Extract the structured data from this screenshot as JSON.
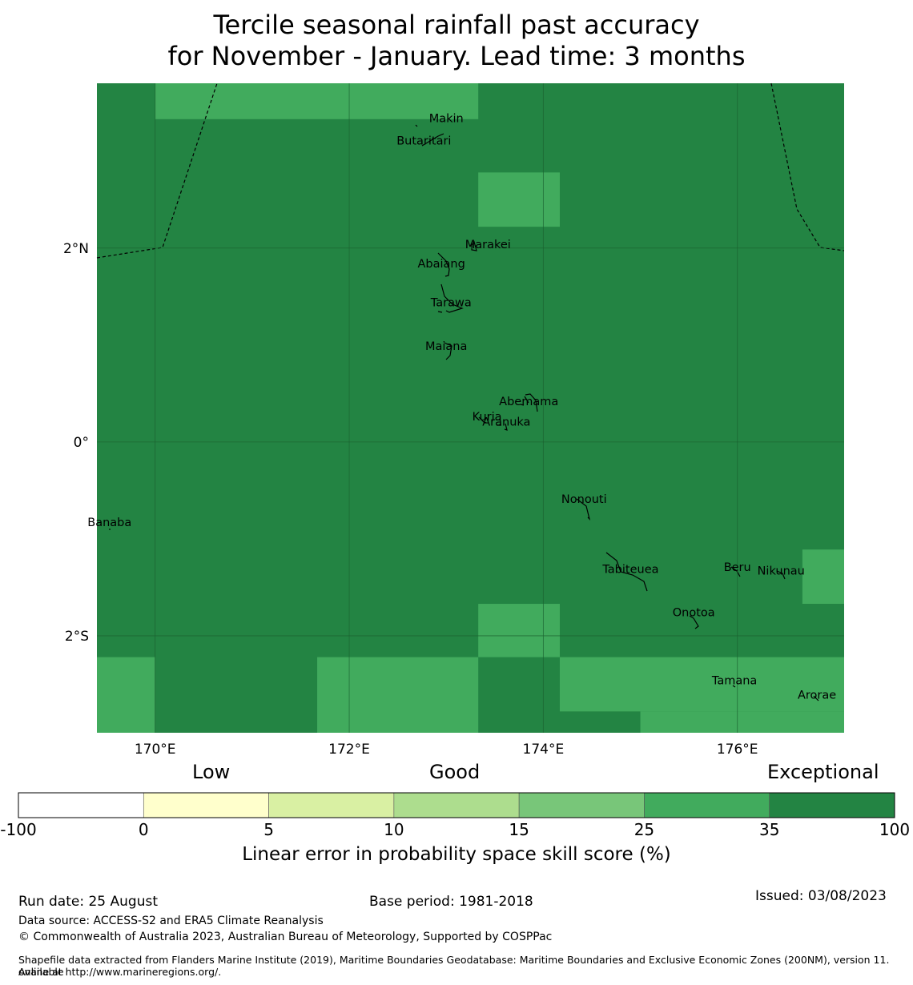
{
  "title": {
    "line1": "Tercile seasonal rainfall past accuracy",
    "line2": "for November - January. Lead time: 3 months"
  },
  "map": {
    "lon_range": [
      169.4,
      177.1
    ],
    "lat_range": [
      -3.0,
      3.7
    ],
    "x_ticks": [
      {
        "value": 170,
        "label": "170°E"
      },
      {
        "value": 172,
        "label": "172°E"
      },
      {
        "value": 174,
        "label": "174°E"
      },
      {
        "value": 176,
        "label": "176°E"
      }
    ],
    "y_ticks": [
      {
        "value": 2,
        "label": "2°N"
      },
      {
        "value": 0,
        "label": "0°"
      },
      {
        "value": -2,
        "label": "2°S"
      }
    ],
    "gridlines": true,
    "background_color": "#238443",
    "cells": [
      {
        "lon": [
          170.0,
          173.33
        ],
        "lat": [
          3.33,
          3.7
        ],
        "color": "#41ab5d"
      },
      {
        "lon": [
          173.33,
          174.17
        ],
        "lat": [
          2.22,
          2.78
        ],
        "color": "#41ab5d"
      },
      {
        "lon": [
          176.67,
          177.1
        ],
        "lat": [
          -1.67,
          -1.11
        ],
        "color": "#41ab5d"
      },
      {
        "lon": [
          173.33,
          174.17
        ],
        "lat": [
          -2.22,
          -1.67
        ],
        "color": "#41ab5d"
      },
      {
        "lon": [
          169.4,
          170.0
        ],
        "lat": [
          -3.0,
          -2.22
        ],
        "color": "#41ab5d"
      },
      {
        "lon": [
          171.67,
          173.33
        ],
        "lat": [
          -3.0,
          -2.22
        ],
        "color": "#41ab5d"
      },
      {
        "lon": [
          174.17,
          177.1
        ],
        "lat": [
          -2.78,
          -2.22
        ],
        "color": "#41ab5d"
      },
      {
        "lon": [
          175.0,
          177.1
        ],
        "lat": [
          -3.0,
          -2.78
        ],
        "color": "#41ab5d"
      }
    ],
    "islands": [
      {
        "name": "Makin",
        "lon": 173.0,
        "lat": 3.3
      },
      {
        "name": "Butaritari",
        "lon": 172.77,
        "lat": 3.07
      },
      {
        "name": "Marakei",
        "lon": 173.43,
        "lat": 2.0
      },
      {
        "name": "Abaiang",
        "lon": 172.95,
        "lat": 1.8
      },
      {
        "name": "Tarawa",
        "lon": 173.05,
        "lat": 1.4
      },
      {
        "name": "Maiana",
        "lon": 173.0,
        "lat": 0.95
      },
      {
        "name": "Abemama",
        "lon": 173.85,
        "lat": 0.38
      },
      {
        "name": "Kuria",
        "lon": 173.42,
        "lat": 0.22
      },
      {
        "name": "Aranuka",
        "lon": 173.62,
        "lat": 0.17
      },
      {
        "name": "Nonouti",
        "lon": 174.42,
        "lat": -0.63
      },
      {
        "name": "Banaba",
        "lon": 169.53,
        "lat": -0.87
      },
      {
        "name": "Tabiteuea",
        "lon": 174.9,
        "lat": -1.35
      },
      {
        "name": "Beru",
        "lon": 176.0,
        "lat": -1.33
      },
      {
        "name": "Nikunau",
        "lon": 176.45,
        "lat": -1.37
      },
      {
        "name": "Onotoa",
        "lon": 175.55,
        "lat": -1.8
      },
      {
        "name": "Tamana",
        "lon": 175.97,
        "lat": -2.5
      },
      {
        "name": "Arorae",
        "lon": 176.82,
        "lat": -2.65
      }
    ]
  },
  "colorbar": {
    "categories": [
      "Low",
      "Good",
      "Exceptional"
    ],
    "bins": [
      {
        "from": -100,
        "to": 0,
        "color": "#ffffff"
      },
      {
        "from": 0,
        "to": 5,
        "color": "#ffffcc"
      },
      {
        "from": 5,
        "to": 10,
        "color": "#d9f0a3"
      },
      {
        "from": 10,
        "to": 15,
        "color": "#addd8e"
      },
      {
        "from": 15,
        "to": 25,
        "color": "#78c679"
      },
      {
        "from": 25,
        "to": 35,
        "color": "#41ab5d"
      },
      {
        "from": 35,
        "to": 100,
        "color": "#238443"
      }
    ],
    "tick_labels": [
      "-100",
      "0",
      "5",
      "10",
      "15",
      "25",
      "35",
      "100"
    ],
    "label": "Linear error in probability space skill score (%)"
  },
  "footer": {
    "run_date": "Run date: 25 August",
    "base_period": "Base period: 1981-2018",
    "issued": "Issued: 03/08/2023",
    "data_source": "Data source: ACCESS-S2 and ERA5 Climate Reanalysis",
    "copyright": "© Commonwealth of Australia 2023, Australian Bureau of Meteorology, Supported by COSPPac",
    "shapefile_line1": "Shapefile data extracted from Flanders Marine Institute (2019), Maritime Boundaries Geodatabase: Maritime Boundaries and Exclusive Economic Zones (200NM), version 11. Available",
    "shapefile_line2": "online at http://www.marineregions.org/."
  }
}
